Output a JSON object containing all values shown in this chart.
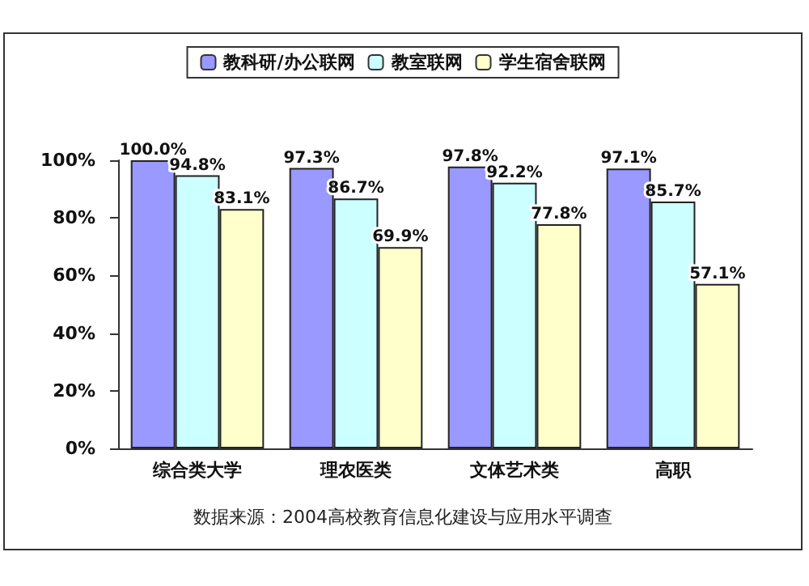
{
  "chart_data": {
    "type": "bar",
    "categories": [
      "综合类大学",
      "理农医类",
      "文体艺术类",
      "高职"
    ],
    "series": [
      {
        "name": "教科研/办公联网",
        "color": "#9999ff",
        "values": [
          100.0,
          97.3,
          97.8,
          97.1
        ],
        "value_labels": [
          "100.0%",
          "97.3%",
          "97.8%",
          "97.1%"
        ]
      },
      {
        "name": "教室联网",
        "color": "#ccffff",
        "values": [
          94.8,
          86.7,
          92.2,
          85.7
        ],
        "value_labels": [
          "94.8%",
          "86.7%",
          "92.2%",
          "85.7%"
        ]
      },
      {
        "name": "学生宿舍联网",
        "color": "#ffffcc",
        "values": [
          83.1,
          69.9,
          77.8,
          57.1
        ],
        "value_labels": [
          "83.1%",
          "69.9%",
          "77.8%",
          "57.1%"
        ]
      }
    ],
    "ylim": [
      0,
      100
    ],
    "yticks": [
      {
        "value": 0,
        "label": "0%"
      },
      {
        "value": 20,
        "label": "20%"
      },
      {
        "value": 40,
        "label": "40%"
      },
      {
        "value": 60,
        "label": "60%"
      },
      {
        "value": 80,
        "label": "80%"
      },
      {
        "value": 100,
        "label": "100%"
      }
    ],
    "grid": false,
    "legend": "top",
    "annotations": [
      "数据来源：2004高校教育信息化建设与应用水平调查"
    ]
  }
}
